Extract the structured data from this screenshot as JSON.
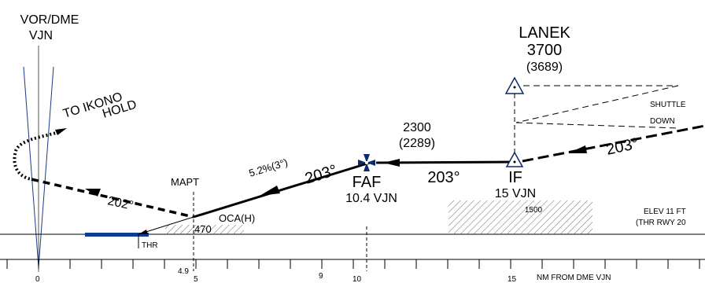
{
  "navaid": {
    "line1": "VOR/DME",
    "line2": "VJN"
  },
  "hold": {
    "line1": "TO IKONO",
    "line2": "HOLD"
  },
  "fix_lanek": {
    "name": "LANEK",
    "alt": "3700",
    "alt_msl": "(3689)"
  },
  "shuttle": {
    "line1": "SHUTTLE",
    "line2": "DOWN"
  },
  "track": {
    "final_a": "203°",
    "final_b": "203°",
    "final_c": "203°",
    "missed": "202°"
  },
  "altitude_2300": {
    "alt": "2300",
    "alt_msl": "(2289)"
  },
  "gradient": "5.2%(3°)",
  "faf": {
    "label": "FAF",
    "dist": "10.4 VJN"
  },
  "if_fix": {
    "label": "IF",
    "dist": "15 VJN"
  },
  "mapt": "MAPT",
  "oca": {
    "label": "OCA(H)",
    "value": "470"
  },
  "obstacle": "1500",
  "elevation": {
    "line1": "ELEV 11 FT",
    "line2": "(THR RWY 20"
  },
  "threshold": "THR",
  "scale": {
    "unit_label": "NM FROM DME VJN",
    "ticks": [
      {
        "nm": 0,
        "label": "0"
      },
      {
        "nm": 4.9,
        "label": "4.9"
      },
      {
        "nm": 5,
        "label": "5"
      },
      {
        "nm": 9,
        "label": "9"
      },
      {
        "nm": 10,
        "label": "10"
      },
      {
        "nm": 15,
        "label": "15"
      }
    ]
  },
  "colors": {
    "ink": "#000000",
    "runway": "#0b3d91",
    "vor_lines": "#1a3a8a",
    "faf_symbol": "#0b2a6b"
  }
}
